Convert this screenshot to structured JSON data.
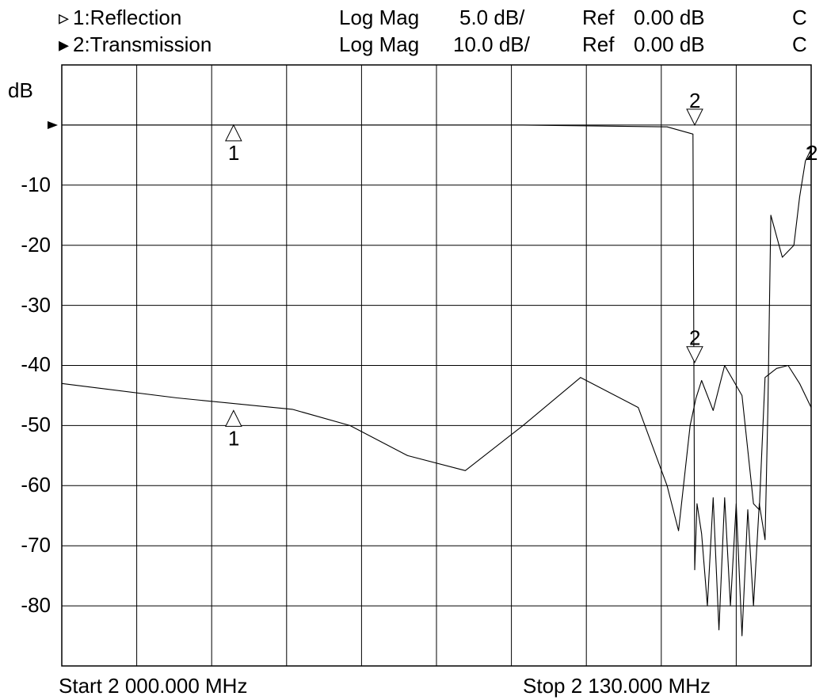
{
  "header": {
    "channels": [
      {
        "symbol": "▹",
        "label": "1:Reflection",
        "format": "Log Mag",
        "scale": "5.0 dB/",
        "ref_label": "Ref",
        "ref_value": "0.00 dB",
        "flag": "C"
      },
      {
        "symbol": "▸",
        "label": "2:Transmission",
        "format": "Log Mag",
        "scale": "10.0 dB/",
        "ref_label": "Ref",
        "ref_value": "0.00 dB",
        "flag": "C"
      }
    ]
  },
  "footer": {
    "start": "Start 2 000.000 MHz",
    "stop": "Stop 2 130.000 MHz"
  },
  "chart_data": {
    "type": "line",
    "ylabel": "dB",
    "ytick_labels": [
      "-10",
      "-20",
      "-30",
      "-40",
      "-50",
      "-60",
      "-70",
      "-80"
    ],
    "ytick_values": [
      -10,
      -20,
      -30,
      -40,
      -50,
      -60,
      -70,
      -80
    ],
    "ylim": [
      -90,
      10
    ],
    "xlim": [
      2000,
      2130
    ],
    "x_unit": "MHz",
    "grid": true,
    "grid_divisions": {
      "x": 10,
      "y": 10
    },
    "reference_level_dB": 0,
    "series": [
      {
        "name": "1:Reflection",
        "x": [
          2000,
          2020,
          2040,
          2050,
          2060,
          2070,
          2080,
          2090,
          2100,
          2105,
          2107,
          2109,
          2110,
          2111,
          2113,
          2115,
          2118,
          2120,
          2121,
          2122,
          2124,
          2126,
          2128,
          2130
        ],
        "y": [
          -43,
          -45.4,
          -47.3,
          -50,
          -55,
          -57.5,
          -50,
          -42,
          -47,
          -60,
          -67.5,
          -50,
          -45.5,
          -42.5,
          -47.5,
          -40,
          -45,
          -63,
          -64,
          -42,
          -40.5,
          -40,
          -43,
          -47
        ],
        "markers": [
          {
            "label": "1",
            "x": 2029.8,
            "y": -47.5
          },
          {
            "label": "2",
            "x": 2109.8,
            "y": -39.5
          }
        ]
      },
      {
        "name": "2:Transmission",
        "x": [
          2000,
          2040,
          2080,
          2105,
          2109.5,
          2109.8,
          2110.2,
          2111,
          2112,
          2113,
          2114,
          2115,
          2116,
          2117,
          2118,
          2119,
          2120,
          2121,
          2122,
          2122.5,
          2123,
          2125,
          2127,
          2128,
          2129,
          2130
        ],
        "y": [
          0,
          0,
          0,
          -0.3,
          -1.5,
          -74,
          -63,
          -68,
          -80,
          -62,
          -84,
          -62,
          -80,
          -63,
          -85,
          -64,
          -80,
          -63,
          -69,
          -47,
          -15,
          -22,
          -20,
          -12,
          -6,
          -4
        ],
        "markers": [
          {
            "label": "1",
            "x": 2029.8,
            "y": 0
          },
          {
            "label": "2",
            "x": 2109.8,
            "y": 0
          }
        ]
      }
    ],
    "end_marker_labels": [
      "1",
      "2"
    ]
  }
}
